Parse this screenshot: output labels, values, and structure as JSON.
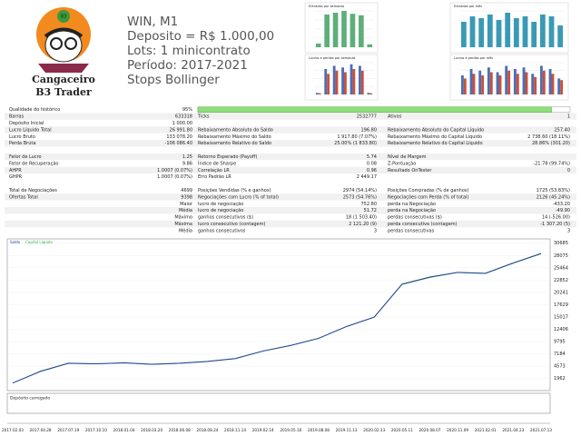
{
  "header": {
    "logo_line1": "Cangaceiro",
    "logo_line2": "B3 Trader",
    "logo_badge": "B3",
    "lines": [
      "WIN, M1",
      "Deposito = R$ 1.000,00",
      "Lots: 1 minicontrato",
      "Período: 2017-2021",
      "Stops Bollinger"
    ]
  },
  "mini_charts": [
    {
      "type": "bar",
      "title": "Entradas por semanas",
      "ylim": [
        0,
        100
      ],
      "series": [
        {
          "color": "#5fae7a",
          "values": [
            10,
            90,
            95,
            100,
            92,
            88,
            8
          ]
        }
      ]
    },
    {
      "type": "bar",
      "title": "Entradas por mês",
      "ylim": [
        0,
        100
      ],
      "series": [
        {
          "color": "#3a9ab5",
          "values": [
            70,
            85,
            80,
            90,
            75,
            95,
            80,
            85,
            70,
            90,
            85,
            60
          ]
        }
      ]
    },
    {
      "type": "bar",
      "title": "Lucros e perdas por semanas",
      "ylim": [
        0,
        100
      ],
      "series": [
        {
          "color": "#4a6fb5",
          "values": [
            5,
            80,
            90,
            85,
            95,
            90,
            5
          ]
        },
        {
          "color": "#c9503c",
          "values": [
            4,
            65,
            75,
            70,
            80,
            75,
            4
          ]
        }
      ]
    },
    {
      "type": "bar",
      "title": "Lucros e perdas por mês",
      "ylim": [
        0,
        100
      ],
      "series": [
        {
          "color": "#4a6fb5",
          "values": [
            60,
            80,
            75,
            85,
            70,
            90,
            80,
            85,
            65,
            90,
            80,
            50
          ]
        },
        {
          "color": "#c9503c",
          "values": [
            50,
            65,
            60,
            70,
            60,
            75,
            65,
            70,
            55,
            75,
            65,
            45
          ]
        }
      ]
    }
  ],
  "table": {
    "quality": {
      "label": "Qualidade do histórico",
      "value": 95,
      "value_label": "95%"
    },
    "groups": [
      [
        [
          "Barras",
          "633318",
          "Ticks",
          "2532777",
          "Ativos",
          "1"
        ],
        [
          "Depósito Inicial",
          "1 000.00",
          null,
          null,
          null,
          null
        ],
        [
          "Lucro Líquido Total",
          "26 991.80",
          "Rebaixamento Absoluto do Saldo",
          "196.80",
          "Rebaixamento Absoluto do Capital Líquido",
          "257.40"
        ],
        [
          "Lucro Bruto",
          "133 078.20",
          "Rebaixamento Máximo do Saldo",
          "1 917.80 (7.07%)",
          "Rebaixamento Máximo do Capital Líquido",
          "2 738.60 (18.11%)"
        ],
        [
          "Perda Bruta",
          "-106 086.40",
          "Rebaixamento Relativo do Saldo",
          "25.00% (1 833.80)",
          "Rebaixamento Relativo do Capital Líquido",
          "28.86% (301.20)"
        ]
      ],
      [
        [
          "Fator de Lucro",
          "1.25",
          "Retorno Esperado (Payoff)",
          "5.74",
          "Nível de Margem",
          null
        ],
        [
          "Fator de Recuperação",
          "9.86",
          "Índice de Sharpe",
          "0.08",
          "Z-Pontuação",
          "-21.78 (99.74%)"
        ],
        [
          "AHPR",
          "1.0007 (0.07%)",
          "Correlação LR",
          "0.96",
          "Resultado OnTester",
          "0"
        ],
        [
          "GHPR",
          "1.0007 (0.07%)",
          "Erro Padrão LR",
          "2 449.17",
          null,
          null
        ]
      ],
      [
        [
          "Total de Negociações",
          "4699",
          "Posições Vendidas (% e ganhos)",
          "2974 (54.14%)",
          "Posições Compradas (% de ganhos)",
          "1725 (53.83%)"
        ],
        [
          "Ofertas Total",
          "9398",
          "Negociações com Lucro (% of total)",
          "2573 (54.76%)",
          "Negociações com Perda (% of total)",
          "2126 (45.24%)"
        ],
        [
          null,
          "Maior",
          "lucro de negociação",
          "752.80",
          "perda na Negociação",
          "-433.20"
        ],
        [
          null,
          "Média",
          "lucro de negociação",
          "51.72",
          "perda na Negociação",
          "-49.90"
        ],
        [
          null,
          "Máximo",
          "ganhos consecutivos ($)",
          "18 (1 503.40)",
          "perdas consecutivas ($)",
          "14 (-526.00)"
        ],
        [
          null,
          "Máxima",
          "lucro consecutivo (contagem)",
          "2 121.20 (9)",
          "perda consecutiva (contagem)",
          "-1 307.20 (5)"
        ],
        [
          null,
          "Média",
          "ganhos consecutivos",
          "3",
          "perdas consecutivas",
          "3"
        ]
      ]
    ]
  },
  "chart_data": {
    "type": "line",
    "sub_panel_label": "Depósito carregado",
    "categories": [
      "2017.02.03",
      "2017.04.28",
      "2017.07.19",
      "2017.10.10",
      "2018.01.04",
      "2018.03.20",
      "2018.06.08",
      "2018.08.24",
      "2018.11.14",
      "2019.02.14",
      "2019.05.16",
      "2019.08.08",
      "2019.11.13",
      "2020.02.13",
      "2020.05.11",
      "2020.08.07",
      "2020.11.09",
      "2021.02.01",
      "2021.04.23",
      "2021.07.13"
    ],
    "series": [
      {
        "name": "Saldo",
        "color": "#1f3f99",
        "values": [
          1000,
          3500,
          5200,
          5100,
          5300,
          5000,
          5200,
          5600,
          6200,
          7800,
          9000,
          10500,
          13000,
          15000,
          22000,
          23500,
          24500,
          24300,
          26500,
          28500
        ]
      },
      {
        "name": "Capital Líquido",
        "color": "#3cb04a",
        "values": [
          1000,
          3450,
          5150,
          5050,
          5250,
          4950,
          5150,
          5550,
          6150,
          7750,
          8950,
          10450,
          12950,
          14950,
          21900,
          23400,
          24450,
          24250,
          26400,
          28400
        ]
      }
    ],
    "ylim": [
      -600,
      31600
    ],
    "yticks": [
      1962,
      4573,
      7184,
      9795,
      12406,
      15017,
      17629,
      20241,
      22852,
      25464,
      28075,
      30685
    ]
  }
}
